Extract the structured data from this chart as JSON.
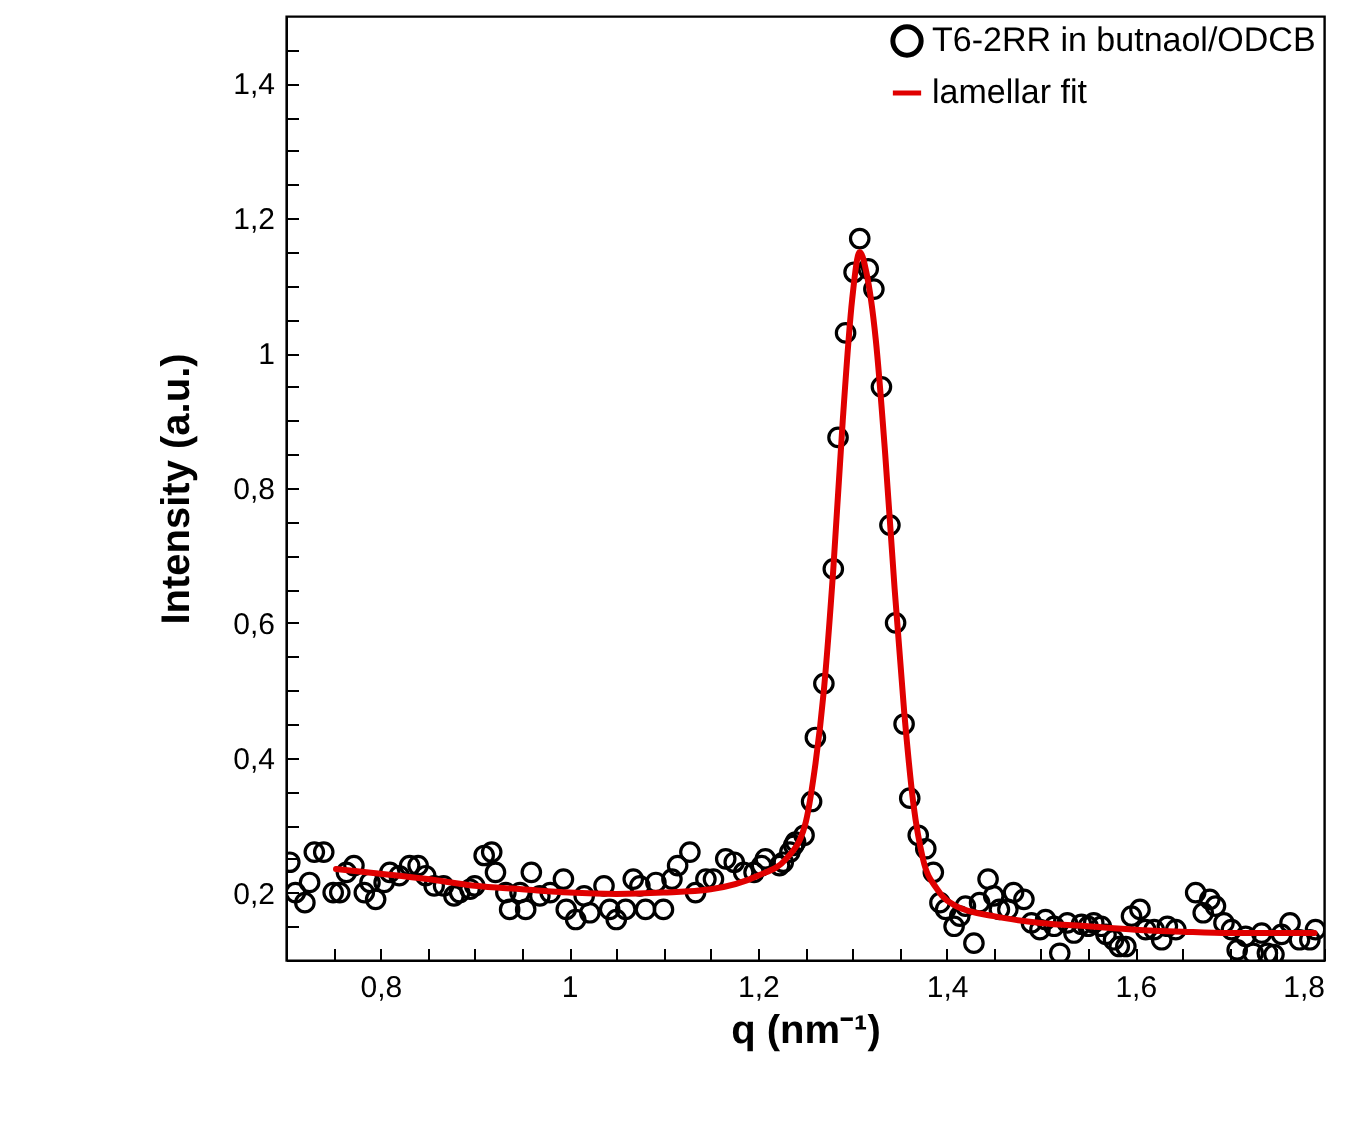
{
  "chart_data": {
    "type": "scatter",
    "xlabel": "q (nm⁻¹)",
    "ylabel": "Intensity (a.u.)",
    "xlim": [
      0.7,
      1.8
    ],
    "ylim": [
      0.1,
      1.5
    ],
    "xticks": [
      {
        "value": 0.7,
        "label": null
      },
      {
        "value": 0.75,
        "label": null
      },
      {
        "value": 0.8,
        "label": "0,8"
      },
      {
        "value": 0.85,
        "label": null
      },
      {
        "value": 0.9,
        "label": null
      },
      {
        "value": 0.95,
        "label": null
      },
      1,
      {
        "value": 1.05,
        "label": null
      },
      {
        "value": 1.1,
        "label": null
      },
      {
        "value": 1.15,
        "label": null
      },
      {
        "value": 1.2,
        "label": "1,2"
      },
      {
        "value": 1.25,
        "label": null
      },
      {
        "value": 1.3,
        "label": null
      },
      {
        "value": 1.35,
        "label": null
      },
      {
        "value": 1.4,
        "label": "1,4"
      },
      {
        "value": 1.45,
        "label": null
      },
      {
        "value": 1.5,
        "label": null
      },
      {
        "value": 1.55,
        "label": null
      },
      {
        "value": 1.6,
        "label": "1,6"
      },
      {
        "value": 1.65,
        "label": null
      },
      {
        "value": 1.7,
        "label": null
      },
      {
        "value": 1.75,
        "label": null
      },
      {
        "value": 1.8,
        "label": "1,8"
      }
    ],
    "yticks": [
      {
        "value": 0.15,
        "label": null
      },
      {
        "value": 0.2,
        "label": "0,2"
      },
      {
        "value": 0.25,
        "label": null
      },
      {
        "value": 0.3,
        "label": null
      },
      {
        "value": 0.35,
        "label": null
      },
      {
        "value": 0.4,
        "label": "0,4"
      },
      {
        "value": 0.45,
        "label": null
      },
      {
        "value": 0.5,
        "label": null
      },
      {
        "value": 0.55,
        "label": null
      },
      {
        "value": 0.6,
        "label": "0,6"
      },
      {
        "value": 0.65,
        "label": null
      },
      {
        "value": 0.7,
        "label": null
      },
      {
        "value": 0.75,
        "label": null
      },
      {
        "value": 0.8,
        "label": "0,8"
      },
      {
        "value": 0.85,
        "label": null
      },
      {
        "value": 0.9,
        "label": null
      },
      {
        "value": 0.95,
        "label": null
      },
      1,
      {
        "value": 1.05,
        "label": null
      },
      {
        "value": 1.1,
        "label": null
      },
      {
        "value": 1.15,
        "label": null
      },
      {
        "value": 1.2,
        "label": "1,2"
      },
      {
        "value": 1.25,
        "label": null
      },
      {
        "value": 1.3,
        "label": null
      },
      {
        "value": 1.35,
        "label": null
      },
      {
        "value": 1.4,
        "label": "1,4"
      },
      {
        "value": 1.45,
        "label": null
      }
    ],
    "legend": "top right",
    "line_style": "solid",
    "grid": false,
    "series": [
      {
        "name": "T6-2RR in butnaol/ODCB",
        "color": "#000000",
        "marker": "circle",
        "x": [
          0.704,
          0.71,
          0.72,
          0.725,
          0.73,
          0.74,
          0.75,
          0.757,
          0.764,
          0.772,
          0.783,
          0.789,
          0.795,
          0.804,
          0.81,
          0.82,
          0.831,
          0.84,
          0.848,
          0.857,
          0.867,
          0.878,
          0.884,
          0.895,
          0.9,
          0.91,
          0.918,
          0.922,
          0.933,
          0.937,
          0.948,
          0.954,
          0.96,
          0.969,
          0.98,
          0.994,
          0.997,
          1.007,
          1.016,
          1.022,
          1.037,
          1.043,
          1.05,
          1.06,
          1.068,
          1.075,
          1.081,
          1.092,
          1.1,
          1.109,
          1.115,
          1.128,
          1.134,
          1.145,
          1.153,
          1.166,
          1.175,
          1.185,
          1.196,
          1.204,
          1.208,
          1.223,
          1.227,
          1.234,
          1.238,
          1.24,
          1.249,
          1.257,
          1.261,
          1.27,
          1.28,
          1.285,
          1.293,
          1.302,
          1.308,
          1.317,
          1.323,
          1.331,
          1.34,
          1.346,
          1.355,
          1.361,
          1.37,
          1.378,
          1.386,
          1.393,
          1.399,
          1.408,
          1.414,
          1.42,
          1.429,
          1.435,
          1.444,
          1.45,
          1.456,
          1.465,
          1.471,
          1.482,
          1.49,
          1.499,
          1.505,
          1.514,
          1.52,
          1.528,
          1.535,
          1.543,
          1.55,
          1.556,
          1.564,
          1.569,
          1.577,
          1.583,
          1.59,
          1.596,
          1.605,
          1.611,
          1.62,
          1.628,
          1.634,
          1.643,
          1.664,
          1.672,
          1.679,
          1.685,
          1.694,
          1.702,
          1.708,
          1.717,
          1.725,
          1.734,
          1.74,
          1.747,
          1.755,
          1.764,
          1.774,
          1.785,
          1.791
        ],
        "values": [
          0.245,
          0.2,
          0.185,
          0.215,
          0.26,
          0.26,
          0.2,
          0.2,
          0.23,
          0.24,
          0.2,
          0.215,
          0.19,
          0.215,
          0.23,
          0.225,
          0.24,
          0.24,
          0.225,
          0.21,
          0.21,
          0.195,
          0.2,
          0.205,
          0.21,
          0.255,
          0.26,
          0.23,
          0.2,
          0.175,
          0.2,
          0.175,
          0.23,
          0.195,
          0.2,
          0.22,
          0.175,
          0.16,
          0.195,
          0.17,
          0.21,
          0.175,
          0.16,
          0.175,
          0.22,
          0.21,
          0.175,
          0.215,
          0.175,
          0.22,
          0.24,
          0.26,
          0.2,
          0.22,
          0.22,
          0.25,
          0.245,
          0.23,
          0.23,
          0.24,
          0.25,
          0.24,
          0.245,
          0.26,
          0.27,
          0.275,
          0.285,
          0.335,
          0.43,
          0.51,
          0.68,
          0.875,
          1.03,
          1.12,
          1.17,
          1.125,
          1.095,
          0.95,
          0.745,
          0.6,
          0.45,
          0.34,
          0.285,
          0.265,
          0.23,
          0.185,
          0.175,
          0.15,
          0.165,
          0.18,
          0.125,
          0.185,
          0.22,
          0.195,
          0.175,
          0.175,
          0.2,
          0.19,
          0.155,
          0.145,
          0.16,
          0.15,
          0.11,
          0.155,
          0.14,
          0.153,
          0.15,
          0.155,
          0.15,
          0.138,
          0.13,
          0.12,
          0.12,
          0.165,
          0.175,
          0.145,
          0.145,
          0.13,
          0.15,
          0.145,
          0.2,
          0.17,
          0.19,
          0.18,
          0.155,
          0.145,
          0.115,
          0.135,
          0.11,
          0.14,
          0.11,
          0.108,
          0.138,
          0.155,
          0.13,
          0.13,
          0.145
        ]
      },
      {
        "name": "lamellar fit",
        "type": "line",
        "color": "#e00000",
        "marker": "none",
        "x": [
          0.753,
          0.8,
          0.85,
          0.9,
          0.95,
          1.0,
          1.05,
          1.1,
          1.15,
          1.2,
          1.23,
          1.25,
          1.26,
          1.27,
          1.28,
          1.29,
          1.3,
          1.308,
          1.315,
          1.325,
          1.335,
          1.345,
          1.355,
          1.365,
          1.375,
          1.39,
          1.41,
          1.45,
          1.5,
          1.55,
          1.6,
          1.65,
          1.7,
          1.75,
          1.79
        ],
        "values": [
          0.235,
          0.228,
          0.22,
          0.21,
          0.205,
          0.2,
          0.198,
          0.2,
          0.205,
          0.225,
          0.25,
          0.3,
          0.38,
          0.5,
          0.68,
          0.9,
          1.08,
          1.15,
          1.12,
          1.02,
          0.85,
          0.65,
          0.47,
          0.33,
          0.25,
          0.205,
          0.18,
          0.165,
          0.155,
          0.15,
          0.145,
          0.142,
          0.14,
          0.14,
          0.14
        ]
      }
    ]
  }
}
